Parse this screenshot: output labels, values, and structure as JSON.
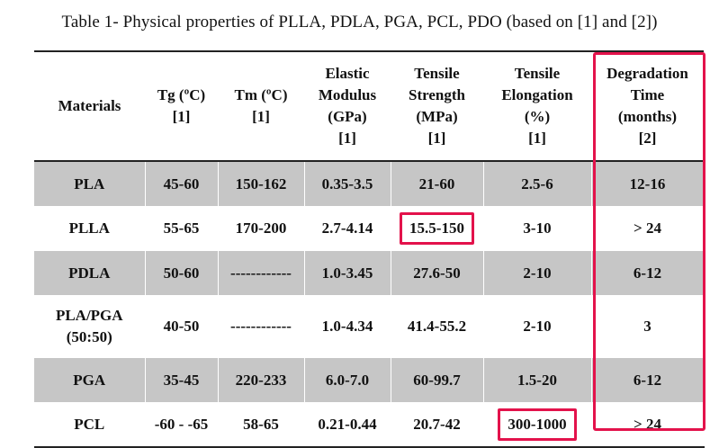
{
  "caption": "Table 1- Physical properties of PLLA, PDLA, PGA, PCL, PDO (based on [1] and [2])",
  "headers": [
    [
      "Materials"
    ],
    [
      "Tg (ºC)",
      "[1]"
    ],
    [
      "Tm (ºC)",
      "[1]"
    ],
    [
      "Elastic",
      "Modulus",
      "(GPa)",
      "[1]"
    ],
    [
      "Tensile",
      "Strength",
      "(MPa)",
      "[1]"
    ],
    [
      "Tensile",
      "Elongation",
      "(%)",
      "[1]"
    ],
    [
      "Degradation",
      "Time",
      "(months)",
      "[2]"
    ]
  ],
  "rows": [
    {
      "cells": [
        "PLA",
        "45-60",
        "150-162",
        "0.35-3.5",
        "21-60",
        "2.5-6",
        "12-16"
      ],
      "shaded": true
    },
    {
      "cells": [
        "PLLA",
        "55-65",
        "170-200",
        "2.7-4.14",
        "15.5-150",
        "3-10",
        "> 24"
      ],
      "shaded": false,
      "highlight": 4
    },
    {
      "cells": [
        "PDLA",
        "50-60",
        "------------",
        "1.0-3.45",
        "27.6-50",
        "2-10",
        "6-12"
      ],
      "shaded": true
    },
    {
      "cells": [
        "PLA/PGA\n(50:50)",
        "40-50",
        "------------",
        "1.0-4.34",
        "41.4-55.2",
        "2-10",
        "3"
      ],
      "shaded": false
    },
    {
      "cells": [
        "PGA",
        "35-45",
        "220-233",
        "6.0-7.0",
        "60-99.7",
        "1.5-20",
        "6-12"
      ],
      "shaded": true
    },
    {
      "cells": [
        "PCL",
        "-60 - -65",
        "58-65",
        "0.21-0.44",
        "20.7-42",
        "300-1000",
        "> 24"
      ],
      "shaded": false,
      "highlight": 5
    }
  ],
  "colors": {
    "highlight": "#e3124b",
    "shade": "#c6c6c6"
  }
}
